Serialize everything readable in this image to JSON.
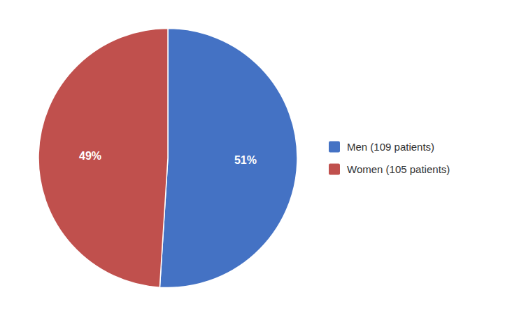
{
  "chart_data": {
    "type": "pie",
    "categories": [
      "Men (109 patients)",
      "Women (105 patients)"
    ],
    "values": [
      51,
      49
    ],
    "value_labels": [
      "51%",
      "49%"
    ],
    "colors": [
      "#4472C4",
      "#C0504D"
    ],
    "data_labels": true,
    "legend": "right"
  }
}
